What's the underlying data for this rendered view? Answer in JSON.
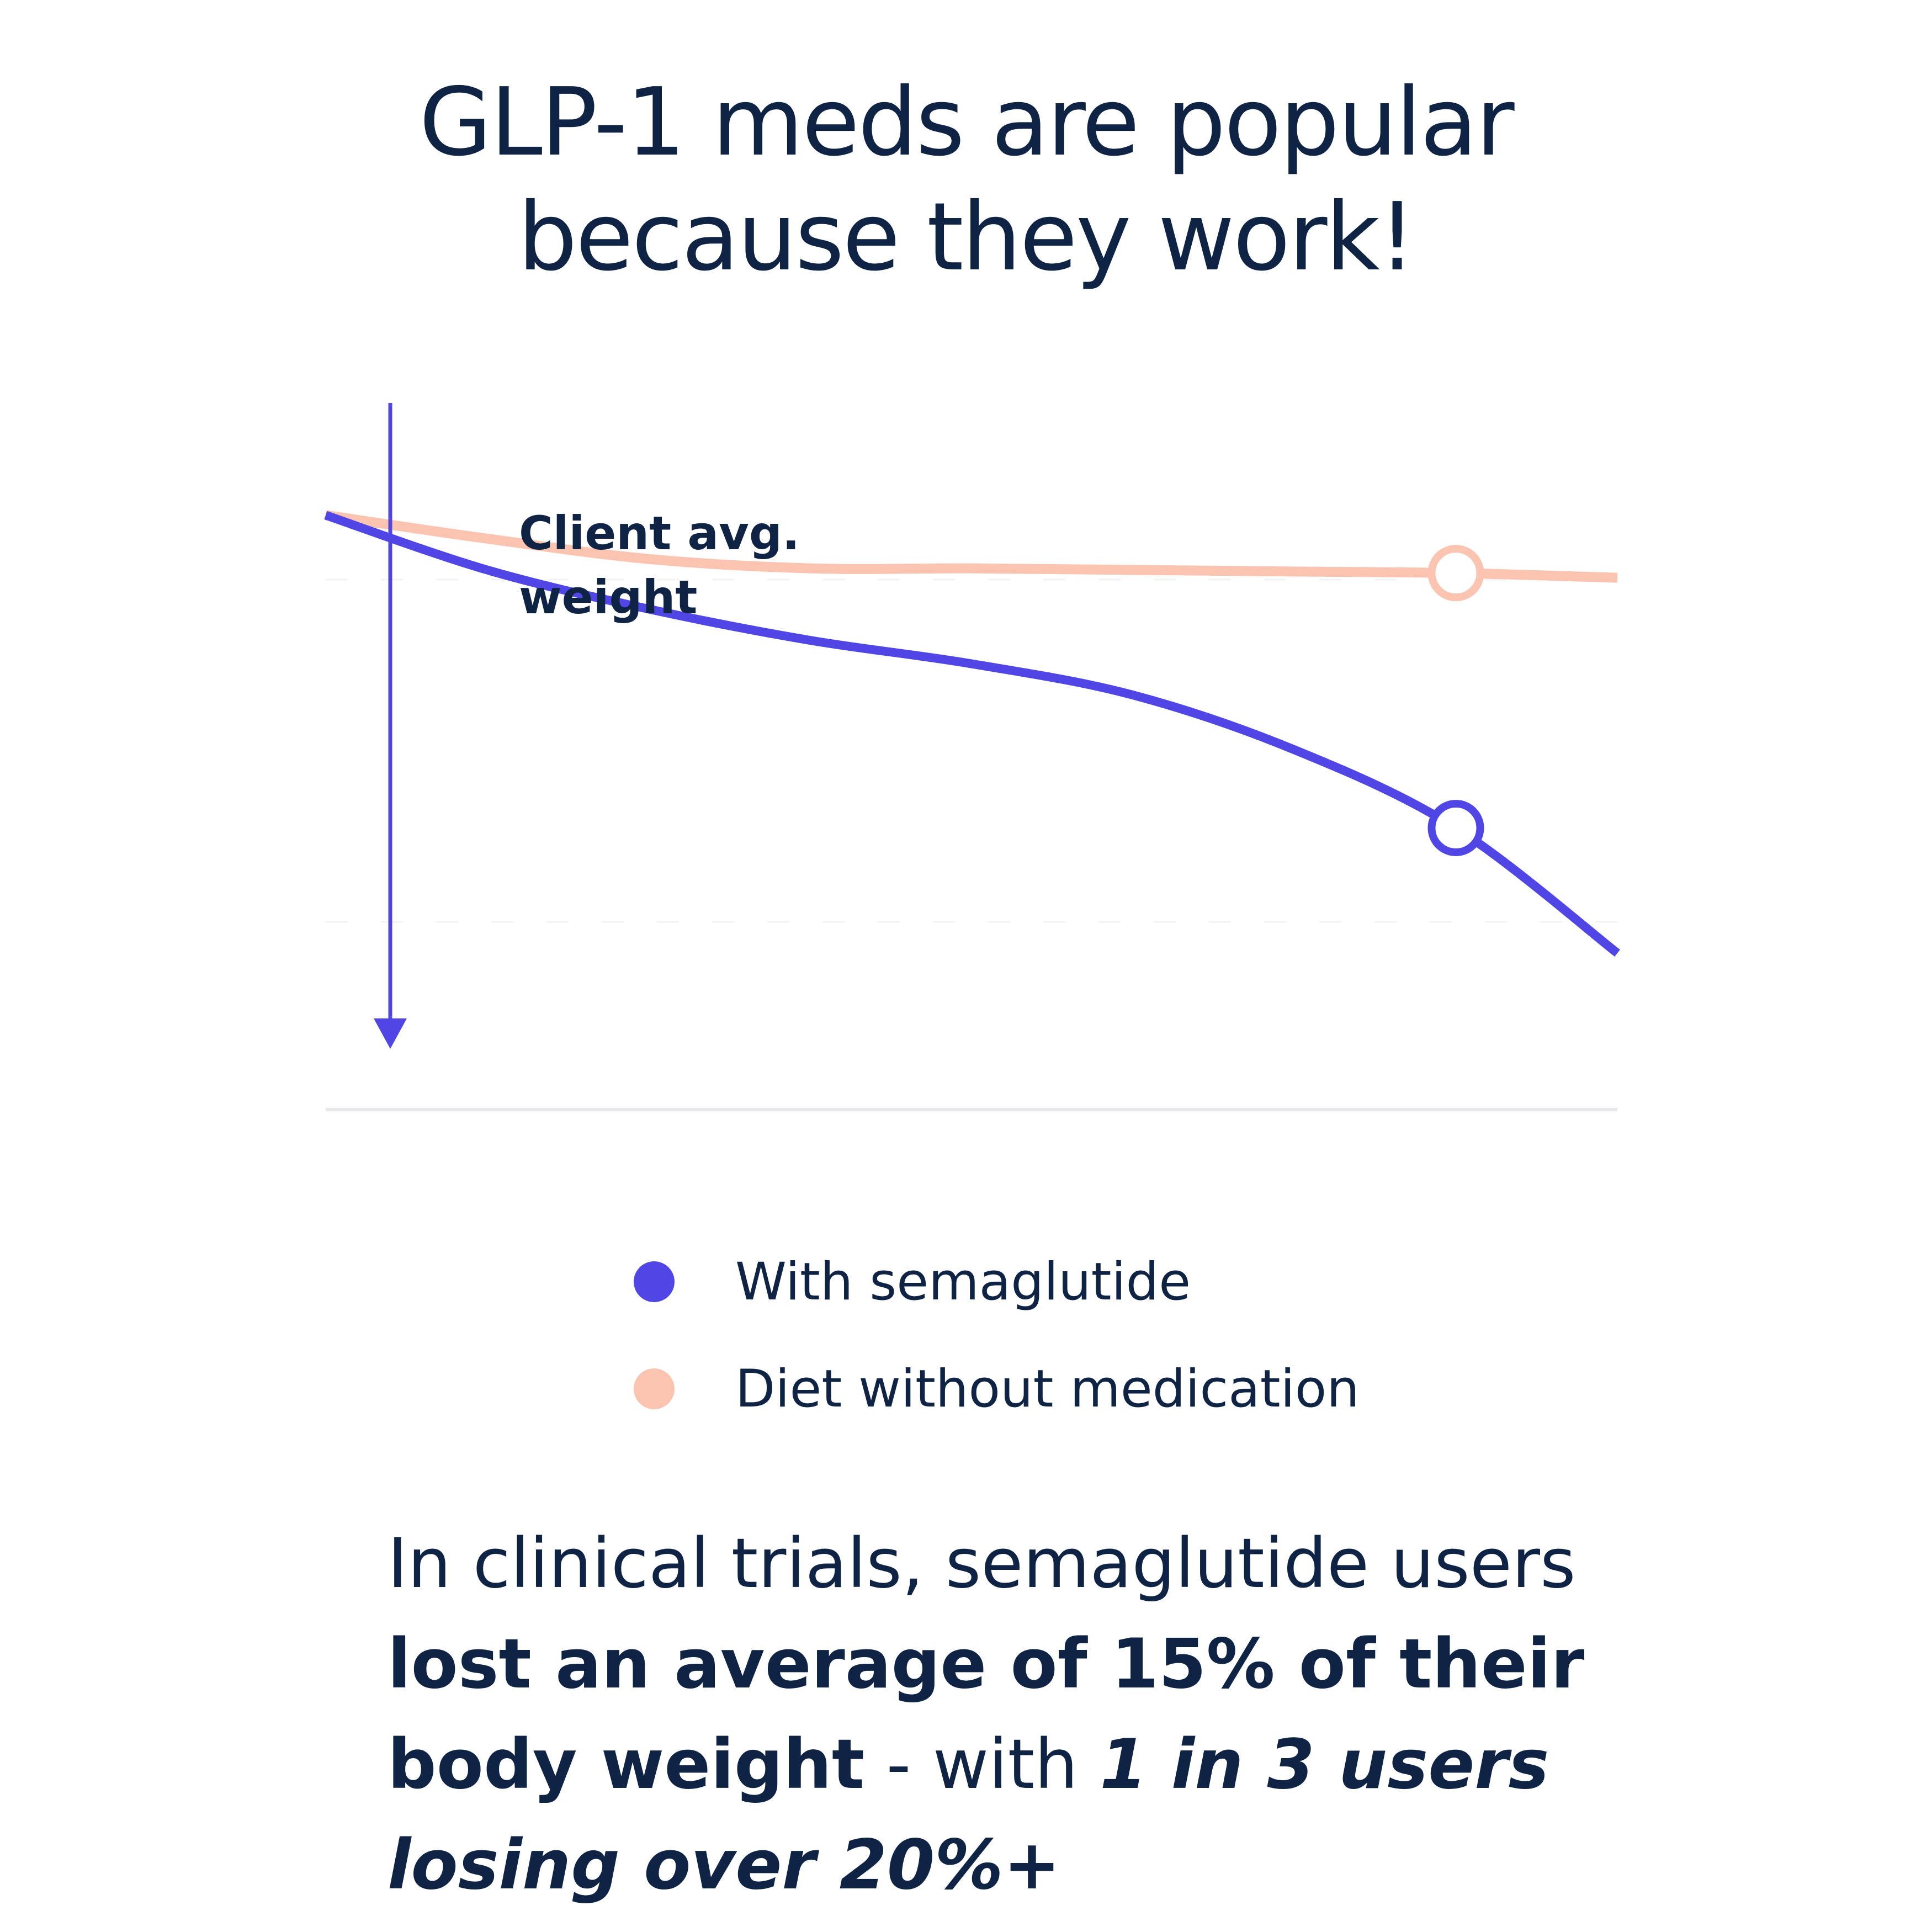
{
  "headline": {
    "line1": "GLP-1 meds are popular",
    "line2": "because they work!"
  },
  "chart_data": {
    "type": "line",
    "title": "",
    "ylabel": "Client avg. weight",
    "ylabel_lines": [
      "Client avg.",
      "weight"
    ],
    "xlabel": "",
    "x": [
      0,
      1,
      2,
      3,
      4,
      5,
      6,
      7,
      8
    ],
    "series": [
      {
        "name": "With semaglutide",
        "color": "#4f46e5",
        "values": [
          100,
          96.5,
          94,
          92,
          90.5,
          88.5,
          85,
          80,
          72
        ]
      },
      {
        "name": "Diet without medication",
        "color": "#fbc4b0",
        "values": [
          100,
          98.5,
          97.2,
          96.6,
          96.6,
          96.5,
          96.4,
          96.3,
          96
        ]
      }
    ],
    "markers": [
      {
        "series": "With semaglutide",
        "x": 7,
        "y": 80
      },
      {
        "series": "Diet without medication",
        "x": 7,
        "y": 96.3
      }
    ],
    "ylim": [
      62,
      104
    ],
    "xlim": [
      0,
      8
    ],
    "grid": false,
    "legend_position": "bottom-center"
  },
  "legend": {
    "items": [
      {
        "label": "With semaglutide",
        "color": "#4f46e5"
      },
      {
        "label": "Diet without medication",
        "color": "#fbc4b0"
      }
    ]
  },
  "footnote": {
    "part1": "In clinical trials, semaglutide users ",
    "part2": "lost an average of 15% of their body weight",
    "part3": " - with ",
    "part4": "1 in 3 users losing over 20%+"
  }
}
